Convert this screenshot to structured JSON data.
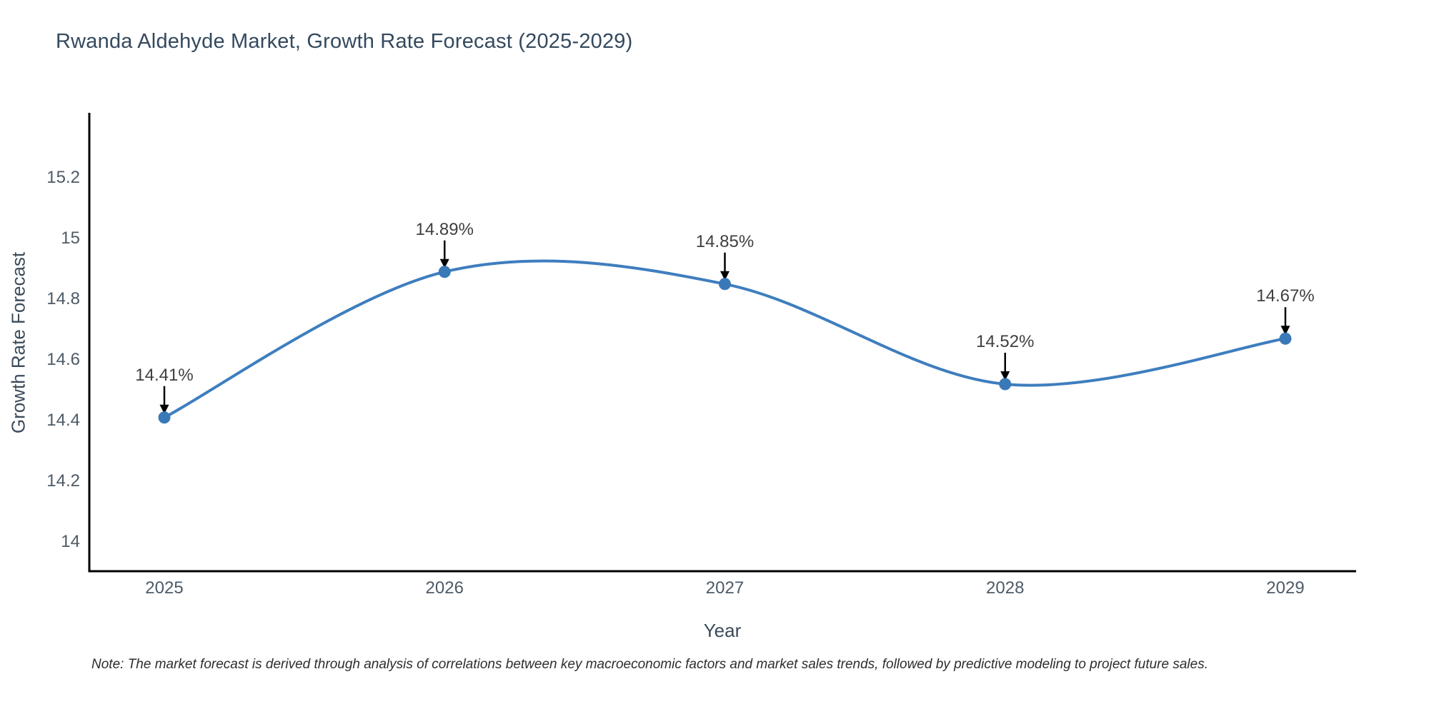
{
  "title": "Rwanda Aldehyde Market, Growth Rate Forecast (2025-2029)",
  "note": "Note: The market forecast is derived through analysis of correlations between key macroeconomic factors and market sales trends, followed by predictive modeling to project future sales.",
  "chart_data": {
    "type": "line",
    "line_shape": "spline",
    "title": "Rwanda Aldehyde Market, Growth Rate Forecast (2025-2029)",
    "xlabel": "Year",
    "ylabel": "Growth Rate Forecast",
    "x": [
      2025,
      2026,
      2027,
      2028,
      2029
    ],
    "series": [
      {
        "name": "Growth Rate Forecast",
        "values": [
          14.41,
          14.89,
          14.85,
          14.52,
          14.67
        ]
      }
    ],
    "point_labels": [
      "14.41%",
      "14.89%",
      "14.85%",
      "14.52%",
      "14.67%"
    ],
    "xtick_labels": [
      "2025",
      "2026",
      "2027",
      "2028",
      "2029"
    ],
    "ytick_values": [
      14,
      14.2,
      14.4,
      14.6,
      14.8,
      15,
      15.2
    ],
    "ytick_labels": [
      "14",
      "14.2",
      "14.4",
      "14.6",
      "14.8",
      "15",
      "15.2"
    ],
    "ylim": [
      13.9,
      15.41
    ],
    "xlim": [
      2024.73,
      2029.25
    ],
    "grid": false,
    "legend_position": "none",
    "colors": {
      "line": "#3e7ebe",
      "marker": "#3a79b8",
      "axis_line": "#000000",
      "tick_text": "#4d5a66",
      "title_text": "#34495e",
      "annotation_text": "#3f3f3f",
      "annotation_arrow": "#000000",
      "background": "#ffffff"
    }
  }
}
